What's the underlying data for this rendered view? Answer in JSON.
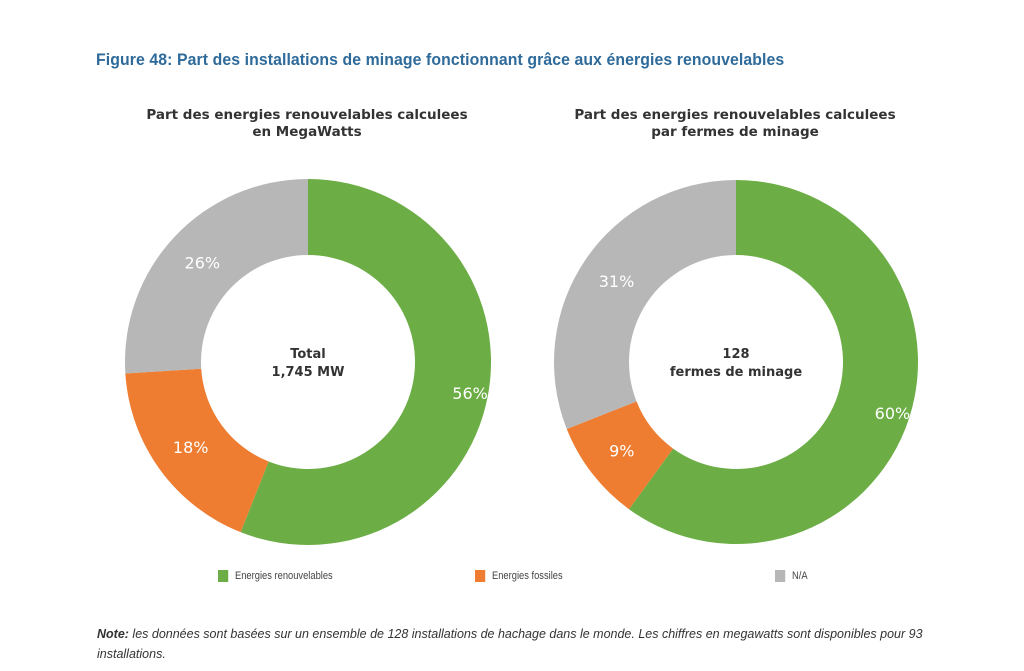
{
  "figure_title": "Figure 48: Part des installations  de minage  fonctionnant  grâce aux énergies  renouvelables",
  "legend": [
    {
      "label": "Energies   renouvelables",
      "color": "#6cae45"
    },
    {
      "label": "Energies   fossiles",
      "color": "#ee7d31"
    },
    {
      "label": "N/A",
      "color": "#b7b7b7"
    }
  ],
  "note": {
    "label": "Note:",
    "text": " les données sont basées sur un ensemble  de 128 installations de hachage dans le monde.  Les chiffres en megawatts sont disponibles pour 93 installations."
  },
  "chart_data": [
    {
      "type": "pie",
      "variant": "donut",
      "title": "Part des energies renouvelables calculees\nen MegaWatts",
      "center_label": [
        "Total",
        "1,745 MW"
      ],
      "categories": [
        "Energies renouvelables",
        "Energies fossiles",
        "N/A"
      ],
      "values": [
        56,
        18,
        26
      ],
      "labels": [
        "56%",
        "18%",
        "26%"
      ],
      "colors": [
        "#6cae45",
        "#ee7d31",
        "#b7b7b7"
      ],
      "start": "12 o'clock",
      "direction": "clockwise",
      "unit": "%"
    },
    {
      "type": "pie",
      "variant": "donut",
      "title": "Part des energies renouvelables calculees\npar fermes de minage",
      "center_label": [
        "128",
        "fermes  de minage"
      ],
      "categories": [
        "Energies renouvelables",
        "Energies fossiles",
        "N/A"
      ],
      "values": [
        60,
        9,
        31
      ],
      "labels": [
        "60%",
        "9%",
        "31%"
      ],
      "colors": [
        "#6cae45",
        "#ee7d31",
        "#b7b7b7"
      ],
      "start": "12 o'clock",
      "direction": "clockwise",
      "unit": "%"
    }
  ]
}
